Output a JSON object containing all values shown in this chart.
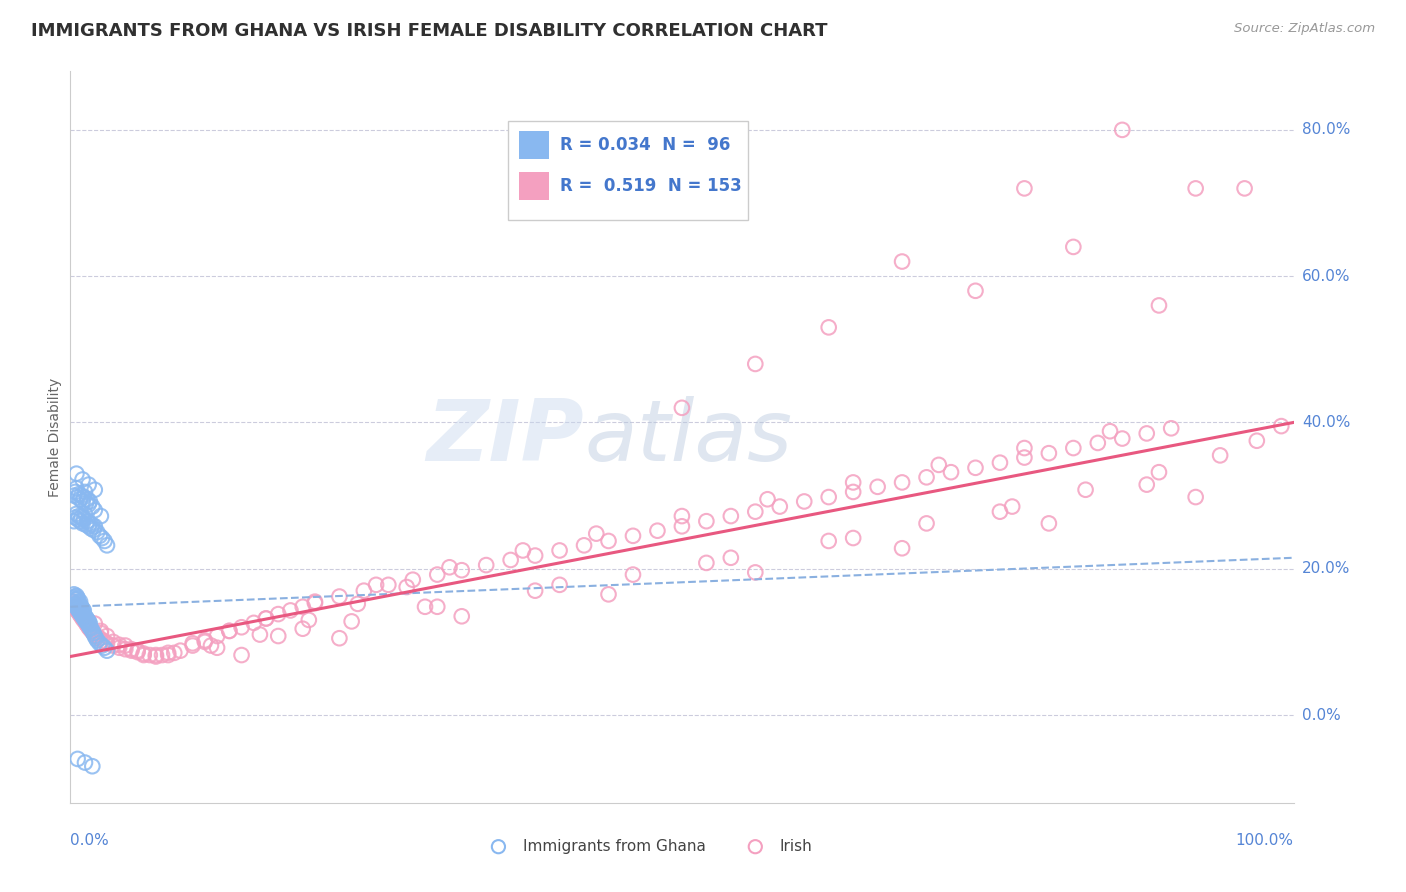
{
  "title": "IMMIGRANTS FROM GHANA VS IRISH FEMALE DISABILITY CORRELATION CHART",
  "source": "Source: ZipAtlas.com",
  "ylabel": "Female Disability",
  "watermark_zip": "ZIP",
  "watermark_atlas": "atlas",
  "legend_r1": "R = 0.034",
  "legend_n1": "N =  96",
  "legend_r2": "R =  0.519",
  "legend_n2": "N = 153",
  "blue_color": "#89b8f0",
  "pink_color": "#f4a0c0",
  "blue_line_color": "#8ab0e0",
  "pink_line_color": "#e85880",
  "title_color": "#303030",
  "source_color": "#999999",
  "axis_label_color": "#5585d5",
  "legend_text_color": "#4477cc",
  "grid_color": "#ccccdd",
  "background_color": "#ffffff",
  "xmin": 0.0,
  "xmax": 1.0,
  "ymin": -0.12,
  "ymax": 0.88,
  "ytick_positions": [
    0.0,
    0.2,
    0.4,
    0.6,
    0.8
  ],
  "ytick_labels": [
    "0.0%",
    "20.0%",
    "40.0%",
    "60.0%",
    "80.0%"
  ],
  "xtick_labels": [
    "0.0%",
    "100.0%"
  ],
  "blue_x": [
    0.002,
    0.003,
    0.003,
    0.004,
    0.004,
    0.004,
    0.005,
    0.005,
    0.005,
    0.005,
    0.006,
    0.006,
    0.006,
    0.006,
    0.007,
    0.007,
    0.007,
    0.008,
    0.008,
    0.008,
    0.008,
    0.009,
    0.009,
    0.009,
    0.01,
    0.01,
    0.01,
    0.011,
    0.011,
    0.011,
    0.012,
    0.012,
    0.013,
    0.013,
    0.014,
    0.014,
    0.015,
    0.015,
    0.016,
    0.016,
    0.017,
    0.018,
    0.019,
    0.02,
    0.021,
    0.022,
    0.024,
    0.026,
    0.028,
    0.03,
    0.003,
    0.004,
    0.005,
    0.006,
    0.007,
    0.008,
    0.009,
    0.01,
    0.011,
    0.012,
    0.013,
    0.014,
    0.015,
    0.016,
    0.017,
    0.018,
    0.019,
    0.02,
    0.022,
    0.024,
    0.026,
    0.028,
    0.03,
    0.003,
    0.004,
    0.005,
    0.006,
    0.007,
    0.008,
    0.009,
    0.01,
    0.011,
    0.012,
    0.013,
    0.014,
    0.015,
    0.016,
    0.018,
    0.02,
    0.025,
    0.005,
    0.01,
    0.015,
    0.02,
    0.006,
    0.012,
    0.018
  ],
  "blue_y": [
    0.155,
    0.16,
    0.165,
    0.15,
    0.158,
    0.162,
    0.148,
    0.152,
    0.158,
    0.163,
    0.145,
    0.15,
    0.155,
    0.16,
    0.143,
    0.148,
    0.153,
    0.14,
    0.145,
    0.15,
    0.155,
    0.138,
    0.143,
    0.148,
    0.135,
    0.14,
    0.145,
    0.133,
    0.138,
    0.143,
    0.13,
    0.135,
    0.128,
    0.133,
    0.126,
    0.13,
    0.123,
    0.128,
    0.12,
    0.125,
    0.118,
    0.115,
    0.112,
    0.108,
    0.105,
    0.102,
    0.098,
    0.095,
    0.092,
    0.088,
    0.265,
    0.27,
    0.275,
    0.268,
    0.272,
    0.265,
    0.27,
    0.262,
    0.268,
    0.275,
    0.26,
    0.265,
    0.258,
    0.262,
    0.255,
    0.26,
    0.253,
    0.258,
    0.25,
    0.245,
    0.242,
    0.238,
    0.232,
    0.3,
    0.305,
    0.31,
    0.298,
    0.302,
    0.295,
    0.3,
    0.292,
    0.298,
    0.305,
    0.29,
    0.295,
    0.288,
    0.292,
    0.285,
    0.28,
    0.272,
    0.33,
    0.322,
    0.315,
    0.308,
    -0.06,
    -0.065,
    -0.07
  ],
  "pink_x": [
    0.002,
    0.003,
    0.004,
    0.005,
    0.006,
    0.007,
    0.008,
    0.009,
    0.01,
    0.011,
    0.012,
    0.013,
    0.014,
    0.015,
    0.016,
    0.017,
    0.018,
    0.019,
    0.02,
    0.022,
    0.024,
    0.026,
    0.028,
    0.03,
    0.035,
    0.04,
    0.045,
    0.05,
    0.055,
    0.06,
    0.065,
    0.07,
    0.08,
    0.09,
    0.1,
    0.11,
    0.12,
    0.13,
    0.14,
    0.15,
    0.16,
    0.17,
    0.18,
    0.19,
    0.2,
    0.22,
    0.24,
    0.26,
    0.28,
    0.3,
    0.32,
    0.34,
    0.36,
    0.38,
    0.4,
    0.42,
    0.44,
    0.46,
    0.48,
    0.5,
    0.52,
    0.54,
    0.56,
    0.58,
    0.6,
    0.62,
    0.64,
    0.66,
    0.68,
    0.7,
    0.72,
    0.74,
    0.76,
    0.78,
    0.8,
    0.82,
    0.84,
    0.86,
    0.88,
    0.9,
    0.01,
    0.02,
    0.03,
    0.04,
    0.06,
    0.08,
    0.1,
    0.13,
    0.16,
    0.2,
    0.25,
    0.31,
    0.37,
    0.43,
    0.5,
    0.57,
    0.64,
    0.71,
    0.78,
    0.85,
    0.015,
    0.025,
    0.05,
    0.075,
    0.12,
    0.17,
    0.23,
    0.3,
    0.38,
    0.46,
    0.54,
    0.62,
    0.7,
    0.77,
    0.83,
    0.89,
    0.94,
    0.97,
    0.99,
    0.035,
    0.07,
    0.14,
    0.22,
    0.32,
    0.44,
    0.56,
    0.68,
    0.8,
    0.92,
    0.045,
    0.11,
    0.19,
    0.29,
    0.4,
    0.52,
    0.64,
    0.76,
    0.88,
    0.005,
    0.025,
    0.055,
    0.085,
    0.115,
    0.155,
    0.195,
    0.235,
    0.275
  ],
  "pink_y": [
    0.155,
    0.152,
    0.148,
    0.145,
    0.142,
    0.14,
    0.137,
    0.135,
    0.132,
    0.13,
    0.128,
    0.125,
    0.123,
    0.12,
    0.118,
    0.116,
    0.114,
    0.112,
    0.11,
    0.107,
    0.105,
    0.102,
    0.1,
    0.098,
    0.095,
    0.092,
    0.09,
    0.088,
    0.086,
    0.084,
    0.082,
    0.08,
    0.082,
    0.088,
    0.095,
    0.102,
    0.108,
    0.115,
    0.12,
    0.126,
    0.132,
    0.138,
    0.143,
    0.148,
    0.153,
    0.162,
    0.17,
    0.178,
    0.185,
    0.192,
    0.198,
    0.205,
    0.212,
    0.218,
    0.225,
    0.232,
    0.238,
    0.245,
    0.252,
    0.258,
    0.265,
    0.272,
    0.278,
    0.285,
    0.292,
    0.298,
    0.305,
    0.312,
    0.318,
    0.325,
    0.332,
    0.338,
    0.345,
    0.352,
    0.358,
    0.365,
    0.372,
    0.378,
    0.385,
    0.392,
    0.138,
    0.125,
    0.108,
    0.096,
    0.082,
    0.085,
    0.098,
    0.115,
    0.132,
    0.155,
    0.178,
    0.202,
    0.225,
    0.248,
    0.272,
    0.295,
    0.318,
    0.342,
    0.365,
    0.388,
    0.128,
    0.112,
    0.09,
    0.082,
    0.092,
    0.108,
    0.128,
    0.148,
    0.17,
    0.192,
    0.215,
    0.238,
    0.262,
    0.285,
    0.308,
    0.332,
    0.355,
    0.375,
    0.395,
    0.1,
    0.082,
    0.082,
    0.105,
    0.135,
    0.165,
    0.195,
    0.228,
    0.262,
    0.298,
    0.095,
    0.1,
    0.118,
    0.148,
    0.178,
    0.208,
    0.242,
    0.278,
    0.315,
    0.148,
    0.115,
    0.088,
    0.085,
    0.095,
    0.11,
    0.13,
    0.152,
    0.175
  ],
  "pink_high_x": [
    0.5,
    0.56,
    0.62,
    0.68,
    0.74,
    0.78,
    0.82,
    0.86,
    0.89,
    0.92,
    0.96
  ],
  "pink_high_y": [
    0.42,
    0.48,
    0.53,
    0.62,
    0.58,
    0.72,
    0.64,
    0.8,
    0.56,
    0.72,
    0.72
  ],
  "blue_line_x0": 0.0,
  "blue_line_x1": 1.0,
  "blue_line_y0": 0.148,
  "blue_line_y1": 0.215,
  "pink_line_x0": 0.0,
  "pink_line_x1": 1.0,
  "pink_line_y0": 0.08,
  "pink_line_y1": 0.4
}
